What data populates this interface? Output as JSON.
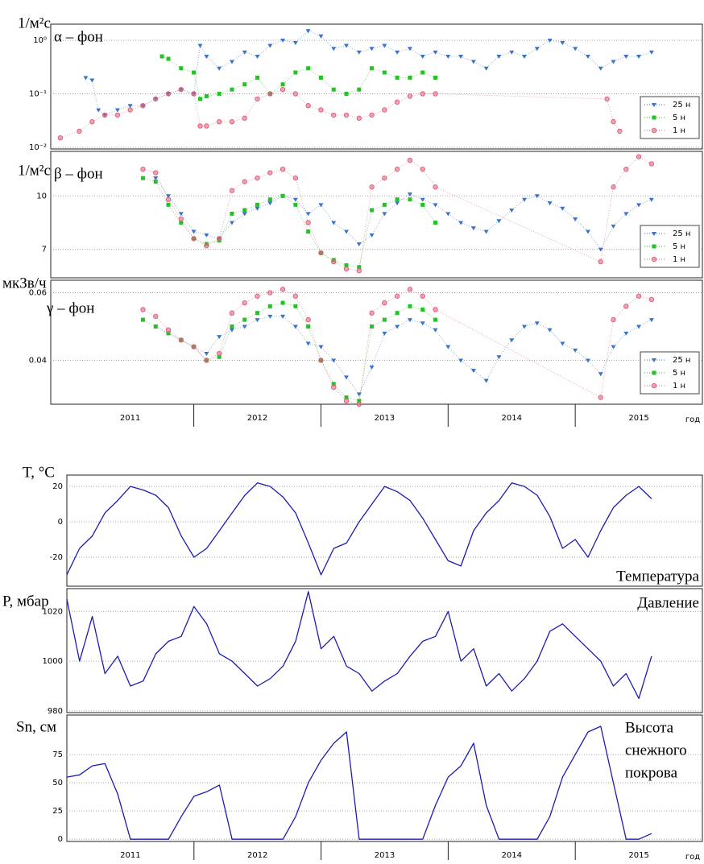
{
  "chart_data": [
    {
      "type": "scatter",
      "y_label": "1/м²с",
      "annotation": "α – фон",
      "yscale": "log",
      "xlim": [
        2010.875,
        2016.0
      ],
      "ylim": [
        0.0093,
        2
      ],
      "yticks": [
        {
          "value": 0.01,
          "label": "10⁻²"
        },
        {
          "value": 0.1,
          "label": "10⁻¹"
        },
        {
          "value": 1,
          "label": "10⁰"
        }
      ],
      "grid": true,
      "legend": "lower right",
      "series": [
        {
          "name": "25 н",
          "color": "#3b73c8",
          "marker": "triangle",
          "x": [
            2011.15,
            2011.2,
            2011.25,
            2011.3,
            2011.4,
            2011.5,
            2011.6,
            2011.7,
            2011.8,
            2011.9,
            2012.0,
            2012.05,
            2012.1,
            2012.2,
            2012.3,
            2012.4,
            2012.5,
            2012.6,
            2012.7,
            2012.8,
            2012.9,
            2013.0,
            2013.1,
            2013.2,
            2013.3,
            2013.4,
            2013.5,
            2013.6,
            2013.7,
            2013.8,
            2013.9,
            2014.0,
            2014.1,
            2014.2,
            2014.3,
            2014.4,
            2014.5,
            2014.6,
            2014.7,
            2014.8,
            2014.9,
            2015.0,
            2015.1,
            2015.2,
            2015.3,
            2015.4,
            2015.5,
            2015.6
          ],
          "values": [
            0.2,
            0.18,
            0.05,
            0.04,
            0.05,
            0.06,
            0.06,
            0.08,
            0.1,
            0.12,
            0.1,
            0.8,
            0.5,
            0.3,
            0.4,
            0.6,
            0.5,
            0.8,
            1.0,
            0.9,
            1.5,
            1.2,
            0.7,
            0.8,
            0.6,
            0.7,
            0.8,
            0.6,
            0.7,
            0.5,
            0.6,
            0.5,
            0.5,
            0.4,
            0.3,
            0.5,
            0.6,
            0.5,
            0.7,
            1.0,
            0.9,
            0.7,
            0.5,
            0.3,
            0.4,
            0.5,
            0.5,
            0.6
          ]
        },
        {
          "name": "5 н",
          "color": "#22c322",
          "marker": "square",
          "x": [
            2011.75,
            2011.8,
            2011.9,
            2012.0,
            2012.05,
            2012.1,
            2012.2,
            2012.3,
            2012.4,
            2012.5,
            2012.6,
            2012.7,
            2012.8,
            2012.9,
            2013.0,
            2013.1,
            2013.2,
            2013.3,
            2013.4,
            2013.5,
            2013.6,
            2013.7,
            2013.8,
            2013.9
          ],
          "values": [
            0.5,
            0.45,
            0.3,
            0.25,
            0.08,
            0.09,
            0.1,
            0.12,
            0.15,
            0.2,
            0.1,
            0.15,
            0.25,
            0.3,
            0.2,
            0.12,
            0.1,
            0.12,
            0.3,
            0.25,
            0.2,
            0.2,
            0.25,
            0.2
          ]
        },
        {
          "name": "1 н",
          "color": "#e0607e",
          "marker": "circle",
          "x": [
            2010.95,
            2011.1,
            2011.2,
            2011.3,
            2011.4,
            2011.5,
            2011.6,
            2011.7,
            2011.8,
            2011.9,
            2012.0,
            2012.05,
            2012.1,
            2012.2,
            2012.3,
            2012.4,
            2012.5,
            2012.6,
            2012.7,
            2012.8,
            2012.9,
            2013.0,
            2013.1,
            2013.2,
            2013.3,
            2013.4,
            2013.5,
            2013.6,
            2013.7,
            2013.8,
            2013.9,
            2015.25,
            2015.3,
            2015.35
          ],
          "values": [
            0.015,
            0.02,
            0.03,
            0.04,
            0.04,
            0.05,
            0.06,
            0.08,
            0.1,
            0.12,
            0.1,
            0.025,
            0.025,
            0.03,
            0.03,
            0.035,
            0.08,
            0.1,
            0.12,
            0.1,
            0.06,
            0.05,
            0.04,
            0.04,
            0.035,
            0.04,
            0.05,
            0.07,
            0.09,
            0.1,
            0.1,
            0.08,
            0.03,
            0.02
          ]
        }
      ]
    },
    {
      "type": "scatter",
      "y_label": "1/м²с",
      "annotation": "β – фон",
      "xlim": [
        2010.875,
        2016.0
      ],
      "ylim": [
        5.4,
        12.5
      ],
      "yticks": [
        7,
        10
      ],
      "grid": true,
      "legend": "lower right",
      "series": [
        {
          "name": "25 н",
          "color": "#3b73c8",
          "marker": "triangle",
          "x": [
            2011.7,
            2011.8,
            2011.9,
            2012.0,
            2012.1,
            2012.2,
            2012.3,
            2012.4,
            2012.5,
            2012.6,
            2012.7,
            2012.8,
            2012.9,
            2013.0,
            2013.1,
            2013.2,
            2013.3,
            2013.4,
            2013.5,
            2013.6,
            2013.7,
            2013.8,
            2013.9,
            2014.0,
            2014.1,
            2014.2,
            2014.3,
            2014.4,
            2014.5,
            2014.6,
            2014.7,
            2014.8,
            2014.9,
            2015.0,
            2015.1,
            2015.2,
            2015.3,
            2015.4,
            2015.5,
            2015.6
          ],
          "values": [
            11,
            10,
            9,
            8,
            7.8,
            7.6,
            8.5,
            9.0,
            9.3,
            9.6,
            10,
            9.8,
            9.0,
            9.5,
            8.5,
            8.0,
            7.3,
            7.8,
            9.0,
            9.6,
            10.1,
            9.8,
            9.5,
            9.0,
            8.5,
            8.2,
            8.0,
            8.6,
            9.2,
            9.8,
            10,
            9.6,
            9.3,
            8.7,
            8.0,
            7.0,
            8.3,
            9.0,
            9.5,
            9.8
          ]
        },
        {
          "name": "5 н",
          "color": "#22c322",
          "marker": "square",
          "x": [
            2011.6,
            2011.7,
            2011.8,
            2011.9,
            2012.0,
            2012.1,
            2012.2,
            2012.3,
            2012.4,
            2012.5,
            2012.6,
            2012.7,
            2012.8,
            2012.9,
            2013.0,
            2013.1,
            2013.2,
            2013.3,
            2013.4,
            2013.5,
            2013.6,
            2013.7,
            2013.8,
            2013.9
          ],
          "values": [
            11,
            10.8,
            9.5,
            8.5,
            7.6,
            7.3,
            7.5,
            9.0,
            9.2,
            9.5,
            9.8,
            10,
            9.5,
            8.0,
            6.8,
            6.4,
            6.1,
            6.0,
            9.2,
            9.5,
            9.8,
            9.8,
            9.5,
            8.5
          ]
        },
        {
          "name": "1 н",
          "color": "#e0607e",
          "marker": "circle",
          "x": [
            2011.6,
            2011.7,
            2011.8,
            2011.9,
            2012.0,
            2012.1,
            2012.2,
            2012.3,
            2012.4,
            2012.5,
            2012.6,
            2012.7,
            2012.8,
            2012.9,
            2013.0,
            2013.1,
            2013.2,
            2013.3,
            2013.4,
            2013.5,
            2013.6,
            2013.7,
            2013.8,
            2013.9,
            2015.2,
            2015.3,
            2015.4,
            2015.5,
            2015.6
          ],
          "values": [
            11.5,
            11.3,
            9.8,
            8.7,
            7.6,
            7.2,
            7.6,
            10.3,
            10.8,
            11,
            11.3,
            11.5,
            11.0,
            8.5,
            6.8,
            6.3,
            5.9,
            5.8,
            10.5,
            11.0,
            11.5,
            12,
            11.5,
            10.5,
            6.3,
            10.5,
            11.5,
            12.2,
            11.8
          ]
        }
      ]
    },
    {
      "type": "scatter",
      "y_label": "мкЗв/ч",
      "annotation": "γ – фон",
      "xlim": [
        2010.875,
        2016.0
      ],
      "ylim": [
        0.027,
        0.0637
      ],
      "yticks": [
        0.04,
        0.06
      ],
      "xticks": [
        {
          "value": 2011.5,
          "label": "2011"
        },
        {
          "value": 2012.5,
          "label": "2012"
        },
        {
          "value": 2013.5,
          "label": "2013"
        },
        {
          "value": 2014.5,
          "label": "2014"
        },
        {
          "value": 2015.5,
          "label": "2015"
        }
      ],
      "year_lines": [
        2012,
        2013,
        2014,
        2015
      ],
      "x_label": "год",
      "grid": true,
      "legend": "lower right",
      "series": [
        {
          "name": "25 н",
          "color": "#3b73c8",
          "marker": "triangle",
          "x": [
            2011.7,
            2011.8,
            2011.9,
            2012.0,
            2012.1,
            2012.2,
            2012.3,
            2012.4,
            2012.5,
            2012.6,
            2012.7,
            2012.8,
            2012.9,
            2013.0,
            2013.1,
            2013.2,
            2013.3,
            2013.4,
            2013.5,
            2013.6,
            2013.7,
            2013.8,
            2013.9,
            2014.0,
            2014.1,
            2014.2,
            2014.3,
            2014.4,
            2014.5,
            2014.6,
            2014.7,
            2014.8,
            2014.9,
            2015.0,
            2015.1,
            2015.2,
            2015.3,
            2015.4,
            2015.5,
            2015.6
          ],
          "values": [
            0.05,
            0.048,
            0.046,
            0.044,
            0.042,
            0.047,
            0.049,
            0.05,
            0.052,
            0.053,
            0.053,
            0.05,
            0.045,
            0.044,
            0.04,
            0.035,
            0.03,
            0.038,
            0.048,
            0.05,
            0.052,
            0.051,
            0.049,
            0.044,
            0.04,
            0.037,
            0.034,
            0.041,
            0.046,
            0.05,
            0.051,
            0.049,
            0.045,
            0.043,
            0.04,
            0.036,
            0.044,
            0.048,
            0.05,
            0.052
          ]
        },
        {
          "name": "5 н",
          "color": "#22c322",
          "marker": "square",
          "x": [
            2011.6,
            2011.7,
            2011.8,
            2011.9,
            2012.0,
            2012.1,
            2012.2,
            2012.3,
            2012.4,
            2012.5,
            2012.6,
            2012.7,
            2012.8,
            2012.9,
            2013.0,
            2013.1,
            2013.2,
            2013.3,
            2013.4,
            2013.5,
            2013.6,
            2013.7,
            2013.8,
            2013.9
          ],
          "values": [
            0.052,
            0.05,
            0.048,
            0.046,
            0.044,
            0.04,
            0.041,
            0.05,
            0.052,
            0.054,
            0.056,
            0.057,
            0.056,
            0.05,
            0.04,
            0.033,
            0.029,
            0.028,
            0.05,
            0.052,
            0.054,
            0.056,
            0.055,
            0.052
          ]
        },
        {
          "name": "1 н",
          "color": "#e0607e",
          "marker": "circle",
          "x": [
            2011.6,
            2011.7,
            2011.8,
            2011.9,
            2012.0,
            2012.1,
            2012.2,
            2012.3,
            2012.4,
            2012.5,
            2012.6,
            2012.7,
            2012.8,
            2012.9,
            2013.0,
            2013.1,
            2013.2,
            2013.3,
            2013.4,
            2013.5,
            2013.6,
            2013.7,
            2013.8,
            2013.9,
            2015.2,
            2015.3,
            2015.4,
            2015.5,
            2015.6
          ],
          "values": [
            0.055,
            0.053,
            0.049,
            0.046,
            0.044,
            0.04,
            0.042,
            0.054,
            0.057,
            0.059,
            0.06,
            0.061,
            0.059,
            0.052,
            0.04,
            0.032,
            0.028,
            0.027,
            0.054,
            0.057,
            0.059,
            0.061,
            0.059,
            0.055,
            0.029,
            0.052,
            0.056,
            0.059,
            0.058
          ]
        }
      ]
    },
    {
      "type": "line",
      "y_label": "T, °C",
      "annotation": "Температура",
      "color": "#1c1cb0",
      "xlim": [
        2011.0,
        2016.0
      ],
      "ylim": [
        -36.4,
        26.4
      ],
      "yticks": [
        -20,
        0,
        20
      ],
      "grid": true,
      "x": [
        2011.0,
        2011.1,
        2011.2,
        2011.3,
        2011.4,
        2011.5,
        2011.6,
        2011.7,
        2011.8,
        2011.9,
        2012.0,
        2012.1,
        2012.2,
        2012.3,
        2012.4,
        2012.5,
        2012.6,
        2012.7,
        2012.8,
        2012.9,
        2013.0,
        2013.1,
        2013.2,
        2013.3,
        2013.4,
        2013.5,
        2013.6,
        2013.7,
        2013.8,
        2013.9,
        2014.0,
        2014.1,
        2014.2,
        2014.3,
        2014.4,
        2014.5,
        2014.6,
        2014.7,
        2014.8,
        2014.9,
        2015.0,
        2015.1,
        2015.2,
        2015.3,
        2015.4,
        2015.5,
        2015.6
      ],
      "values": [
        -30,
        -15,
        -8,
        5,
        12,
        20,
        18,
        15,
        8,
        -8,
        -20,
        -15,
        -5,
        5,
        15,
        22,
        20,
        14,
        5,
        -12,
        -30,
        -15,
        -12,
        0,
        10,
        20,
        17,
        12,
        2,
        -10,
        -22,
        -25,
        -5,
        5,
        12,
        22,
        20,
        15,
        3,
        -15,
        -10,
        -20,
        -5,
        8,
        15,
        20,
        13
      ]
    },
    {
      "type": "line",
      "y_label": "P, мбар",
      "annotation": "Давление",
      "color": "#1c1cb0",
      "xlim": [
        2011.0,
        2016.0
      ],
      "ylim": [
        979.3,
        1029.2
      ],
      "yticks": [
        980,
        1000,
        1020
      ],
      "grid": true,
      "x": [
        2011.0,
        2011.1,
        2011.2,
        2011.3,
        2011.4,
        2011.5,
        2011.6,
        2011.7,
        2011.8,
        2011.9,
        2012.0,
        2012.1,
        2012.2,
        2012.3,
        2012.4,
        2012.5,
        2012.6,
        2012.7,
        2012.8,
        2012.9,
        2013.0,
        2013.1,
        2013.2,
        2013.3,
        2013.4,
        2013.5,
        2013.6,
        2013.7,
        2013.8,
        2013.9,
        2014.0,
        2014.1,
        2014.2,
        2014.3,
        2014.4,
        2014.5,
        2014.6,
        2014.7,
        2014.8,
        2014.9,
        2015.0,
        2015.1,
        2015.2,
        2015.3,
        2015.4,
        2015.5,
        2015.6
      ],
      "values": [
        1025,
        1000,
        1018,
        995,
        1002,
        990,
        992,
        1003,
        1008,
        1010,
        1022,
        1015,
        1003,
        1000,
        995,
        990,
        993,
        998,
        1008,
        1028,
        1005,
        1010,
        998,
        995,
        988,
        992,
        995,
        1002,
        1008,
        1010,
        1020,
        1000,
        1005,
        990,
        995,
        988,
        993,
        1000,
        1012,
        1015,
        1010,
        1005,
        1000,
        990,
        995,
        985,
        1002
      ]
    },
    {
      "type": "line",
      "y_label": "Sn, см",
      "annotation": [
        "Высота",
        "снежного",
        "покрова"
      ],
      "color": "#1c1cb0",
      "xlim": [
        2011.0,
        2016.0
      ],
      "ylim": [
        -2,
        110
      ],
      "yticks": [
        0,
        25,
        50,
        75
      ],
      "grid": true,
      "xticks": [
        {
          "value": 2011.5,
          "label": "2011"
        },
        {
          "value": 2012.5,
          "label": "2012"
        },
        {
          "value": 2013.5,
          "label": "2013"
        },
        {
          "value": 2014.5,
          "label": "2014"
        },
        {
          "value": 2015.5,
          "label": "2015"
        }
      ],
      "year_lines": [
        2012,
        2013,
        2014,
        2015
      ],
      "x_label": "год",
      "x": [
        2011.0,
        2011.1,
        2011.2,
        2011.3,
        2011.4,
        2011.5,
        2011.6,
        2011.7,
        2011.8,
        2011.9,
        2012.0,
        2012.1,
        2012.2,
        2012.3,
        2012.4,
        2012.5,
        2012.6,
        2012.7,
        2012.8,
        2012.9,
        2013.0,
        2013.1,
        2013.2,
        2013.3,
        2013.4,
        2013.5,
        2013.6,
        2013.7,
        2013.8,
        2013.9,
        2014.0,
        2014.1,
        2014.2,
        2014.3,
        2014.4,
        2014.5,
        2014.6,
        2014.7,
        2014.8,
        2014.9,
        2015.0,
        2015.1,
        2015.2,
        2015.3,
        2015.4,
        2015.5,
        2015.6
      ],
      "values": [
        55,
        57,
        65,
        67,
        40,
        0,
        0,
        0,
        0,
        20,
        38,
        42,
        48,
        0,
        0,
        0,
        0,
        0,
        20,
        50,
        70,
        85,
        95,
        0,
        0,
        0,
        0,
        0,
        0,
        30,
        55,
        65,
        85,
        30,
        0,
        0,
        0,
        0,
        20,
        55,
        75,
        95,
        100,
        50,
        0,
        0,
        5
      ]
    }
  ]
}
